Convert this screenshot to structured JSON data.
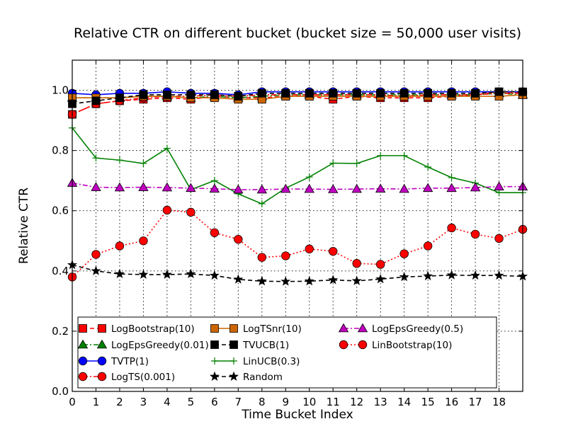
{
  "chart_data": {
    "type": "line",
    "title": "Relative CTR on different bucket (bucket size = 50,000 user visits)",
    "xlabel": "Time Bucket Index",
    "ylabel": "Relative CTR",
    "xlim": [
      0,
      19
    ],
    "ylim": [
      0.0,
      1.1
    ],
    "xticks": [
      "0",
      "1",
      "2",
      "3",
      "4",
      "5",
      "6",
      "7",
      "8",
      "9",
      "10",
      "11",
      "12",
      "13",
      "14",
      "15",
      "16",
      "17",
      "18"
    ],
    "yticks": [
      "0.0",
      "0.2",
      "0.4",
      "0.6",
      "0.8",
      "1.0"
    ],
    "grid": true,
    "legend_position": "lower-center",
    "x": [
      0,
      1,
      2,
      3,
      4,
      5,
      6,
      7,
      8,
      9,
      10,
      11,
      12,
      13,
      14,
      15,
      16,
      17,
      18,
      19
    ],
    "series": [
      {
        "name": "LogBootstrap(10)",
        "color": "#ff0000",
        "marker": "square",
        "linestyle": "dashed",
        "values": [
          0.92,
          0.955,
          0.965,
          0.97,
          0.975,
          0.97,
          0.98,
          0.975,
          0.975,
          0.98,
          0.98,
          0.97,
          0.98,
          0.975,
          0.975,
          0.975,
          0.98,
          0.985,
          0.995,
          0.99
        ]
      },
      {
        "name": "LogEpsGreedy(0.01)",
        "color": "#008000",
        "marker": "triangle",
        "linestyle": "dashdot",
        "values": [
          0.975,
          0.975,
          0.975,
          0.98,
          0.98,
          0.975,
          0.98,
          0.975,
          0.98,
          0.985,
          0.985,
          0.985,
          0.985,
          0.985,
          0.985,
          0.985,
          0.985,
          0.985,
          0.99,
          0.985
        ]
      },
      {
        "name": "TVTP(1)",
        "color": "#0000ff",
        "marker": "circle",
        "linestyle": "solid",
        "values": [
          0.99,
          0.985,
          0.99,
          0.99,
          0.995,
          0.99,
          0.99,
          0.985,
          0.995,
          0.995,
          0.995,
          0.995,
          0.995,
          0.995,
          0.995,
          0.995,
          0.995,
          0.995,
          0.995,
          0.995
        ]
      },
      {
        "name": "LogTS(0.001)",
        "color": "#ff0000",
        "marker": "circle",
        "linestyle": "dashdot",
        "values": [
          0.92,
          0.955,
          0.965,
          0.975,
          0.98,
          0.98,
          0.985,
          0.98,
          0.985,
          0.985,
          0.985,
          0.985,
          0.985,
          0.985,
          0.98,
          0.985,
          0.985,
          0.985,
          0.99,
          0.99
        ]
      },
      {
        "name": "LogTSnr(10)",
        "color": "#cc6600",
        "marker": "square",
        "linestyle": "solid",
        "values": [
          0.975,
          0.975,
          0.975,
          0.98,
          0.98,
          0.975,
          0.975,
          0.97,
          0.97,
          0.98,
          0.98,
          0.98,
          0.98,
          0.98,
          0.98,
          0.98,
          0.98,
          0.98,
          0.98,
          0.985
        ]
      },
      {
        "name": "TVUCB(1)",
        "color": "#000000",
        "marker": "square",
        "linestyle": "dashed",
        "values": [
          0.955,
          0.965,
          0.975,
          0.985,
          0.985,
          0.985,
          0.985,
          0.98,
          0.99,
          0.99,
          0.99,
          0.99,
          0.99,
          0.99,
          0.99,
          0.99,
          0.99,
          0.99,
          0.995,
          0.995
        ]
      },
      {
        "name": "LinUCB(0.3)",
        "color": "#008000",
        "marker": "plus",
        "linestyle": "solid",
        "values": [
          0.875,
          0.775,
          0.768,
          0.757,
          0.807,
          0.67,
          0.7,
          0.656,
          0.623,
          0.675,
          0.712,
          0.758,
          0.757,
          0.783,
          0.783,
          0.745,
          0.71,
          0.692,
          0.66,
          0.66
        ]
      },
      {
        "name": "Random",
        "color": "#000000",
        "marker": "star",
        "linestyle": "dashed",
        "values": [
          0.42,
          0.4,
          0.39,
          0.388,
          0.388,
          0.39,
          0.385,
          0.372,
          0.366,
          0.365,
          0.366,
          0.37,
          0.367,
          0.373,
          0.38,
          0.383,
          0.386,
          0.385,
          0.385,
          0.382
        ]
      },
      {
        "name": "LogEpsGreedy(0.5)",
        "color": "#bf00bf",
        "marker": "triangle",
        "linestyle": "dashdot",
        "values": [
          0.692,
          0.678,
          0.677,
          0.678,
          0.677,
          0.675,
          0.673,
          0.67,
          0.67,
          0.672,
          0.672,
          0.671,
          0.672,
          0.673,
          0.672,
          0.675,
          0.675,
          0.677,
          0.68,
          0.68
        ]
      },
      {
        "name": "LinBootstrap(10)",
        "color": "#ff0000",
        "marker": "circle",
        "linestyle": "dotted",
        "values": [
          0.38,
          0.455,
          0.483,
          0.5,
          0.602,
          0.595,
          0.527,
          0.505,
          0.445,
          0.45,
          0.473,
          0.465,
          0.425,
          0.422,
          0.457,
          0.483,
          0.543,
          0.522,
          0.508,
          0.538
        ]
      }
    ]
  }
}
